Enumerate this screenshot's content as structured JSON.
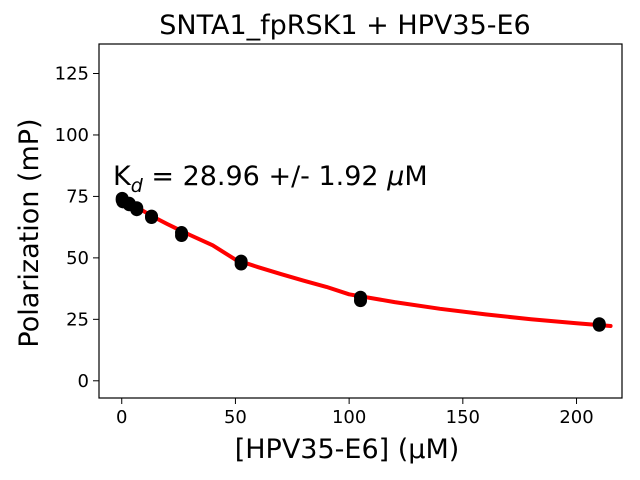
{
  "chart_data": {
    "type": "scatter",
    "title": "SNTA1_fpRSK1 + HPV35-E6",
    "xlabel": "[HPV35-E6] (µM)",
    "ylabel": "Polarization (mP)",
    "xlim": [
      -10,
      220
    ],
    "ylim": [
      -7,
      137
    ],
    "xticks": [
      0,
      50,
      100,
      150,
      200
    ],
    "yticks": [
      0,
      25,
      50,
      75,
      100,
      125
    ],
    "annotation": {
      "kd_base": "K",
      "kd_sub": "d",
      "kd_rest": " = 28.96 +/- 1.92 ",
      "kd_mu": "μ",
      "kd_unit": "M"
    },
    "series": [
      {
        "kind": "points",
        "color": "#000000",
        "points": [
          {
            "x": 0.2,
            "y": 73.5
          },
          {
            "x": 0.2,
            "y": 74.2
          },
          {
            "x": 0.5,
            "y": 72.8
          },
          {
            "x": 3.3,
            "y": 72.2
          },
          {
            "x": 3.3,
            "y": 71.6
          },
          {
            "x": 6.6,
            "y": 70.4
          },
          {
            "x": 6.6,
            "y": 69.6
          },
          {
            "x": 13.1,
            "y": 67.0
          },
          {
            "x": 13.1,
            "y": 66.4
          },
          {
            "x": 26.3,
            "y": 60.3
          },
          {
            "x": 26.3,
            "y": 59.1
          },
          {
            "x": 52.5,
            "y": 48.7
          },
          {
            "x": 52.5,
            "y": 47.5
          },
          {
            "x": 105,
            "y": 34.0
          },
          {
            "x": 105,
            "y": 32.6
          },
          {
            "x": 210,
            "y": 23.2
          },
          {
            "x": 210,
            "y": 22.6
          }
        ]
      },
      {
        "kind": "fit",
        "color": "#ff0000",
        "points": [
          {
            "x": 0,
            "y": 74.2
          },
          {
            "x": 5,
            "y": 71.5
          },
          {
            "x": 10,
            "y": 68.8
          },
          {
            "x": 15,
            "y": 66.2
          },
          {
            "x": 20,
            "y": 63.8
          },
          {
            "x": 25,
            "y": 61.5
          },
          {
            "x": 30,
            "y": 59.3
          },
          {
            "x": 40,
            "y": 55.1
          },
          {
            "x": 50,
            "y": 49.3
          },
          {
            "x": 60,
            "y": 46.2
          },
          {
            "x": 70,
            "y": 43.4
          },
          {
            "x": 80,
            "y": 40.7
          },
          {
            "x": 90,
            "y": 38.2
          },
          {
            "x": 100,
            "y": 35.2
          },
          {
            "x": 120,
            "y": 32.0
          },
          {
            "x": 140,
            "y": 29.3
          },
          {
            "x": 160,
            "y": 27.0
          },
          {
            "x": 180,
            "y": 25.0
          },
          {
            "x": 200,
            "y": 23.4
          },
          {
            "x": 215,
            "y": 22.3
          }
        ]
      }
    ]
  }
}
